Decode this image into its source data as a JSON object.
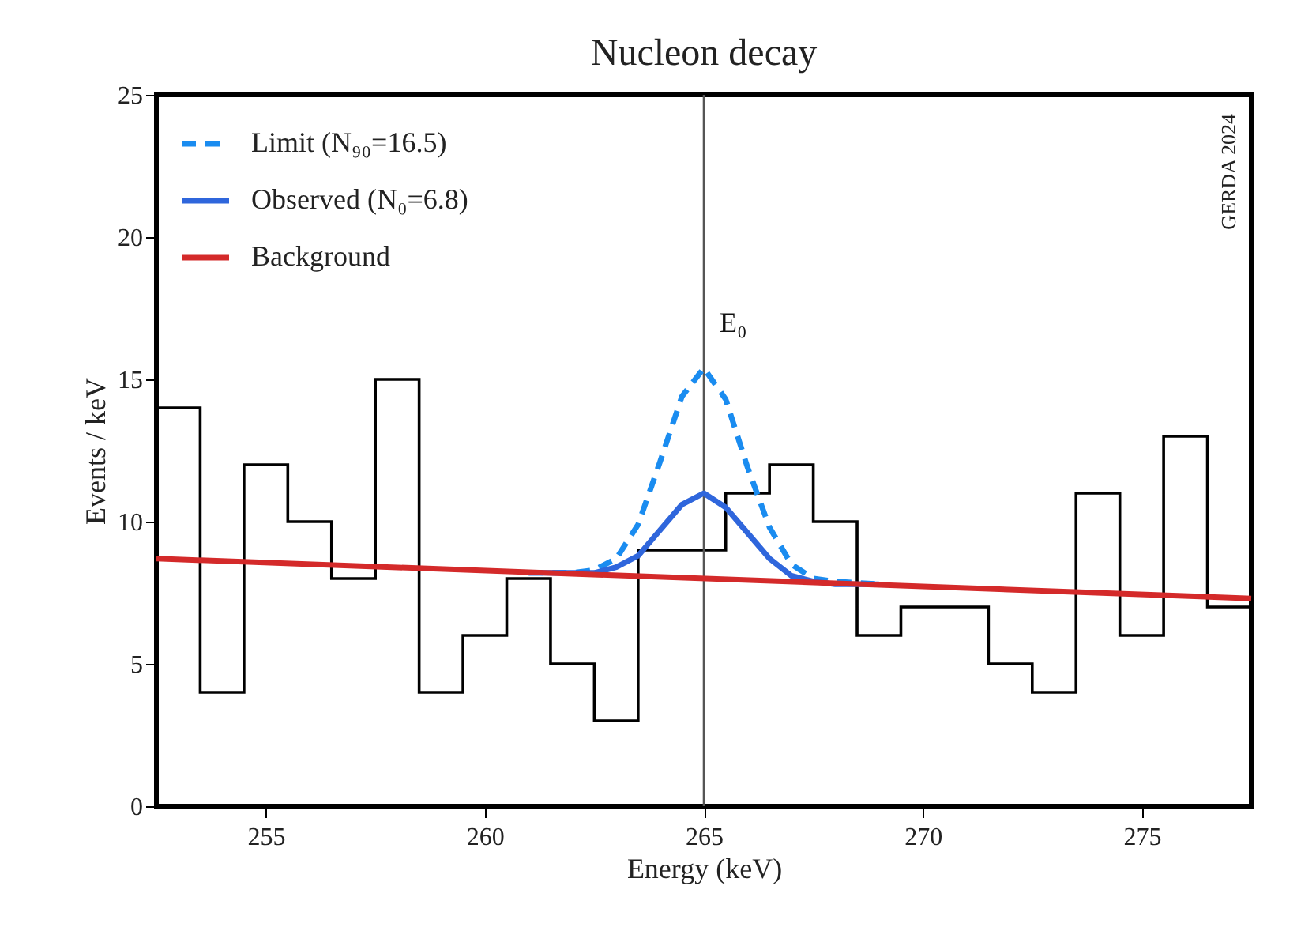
{
  "chart_data": {
    "type": "histogram",
    "title": "Nucleon decay",
    "xlabel": "Energy (keV)",
    "ylabel": "Events / keV",
    "bins": [
      252.5,
      253.5,
      254.5,
      255.5,
      256.5,
      257.5,
      258.5,
      259.5,
      260.5,
      261.5,
      262.5,
      263.5,
      264.5,
      265.5,
      266.5,
      267.5,
      268.5,
      269.5,
      270.5,
      271.5,
      272.5,
      273.5,
      274.5,
      275.5,
      276.5,
      277.5
    ],
    "values": [
      14,
      4,
      12,
      10,
      8,
      15,
      4,
      6,
      8,
      5,
      3,
      9,
      9,
      11,
      12,
      10,
      6,
      7,
      7,
      5,
      4,
      11,
      6,
      13,
      7
    ],
    "color": "#000000",
    "series": [
      {
        "name": "Limit (N₉₀=16.5)",
        "type": "line",
        "line_style": "dashed",
        "color": "#1a8cf0",
        "x": [
          261,
          262,
          262.5,
          263,
          263.5,
          264,
          264.5,
          265,
          265.5,
          266,
          266.5,
          267,
          267.5,
          268,
          269
        ],
        "values": [
          8.2,
          8.2,
          8.3,
          8.7,
          9.9,
          12.1,
          14.4,
          15.4,
          14.3,
          11.9,
          9.8,
          8.5,
          8.0,
          7.9,
          7.8
        ]
      },
      {
        "name": "Observed (N₀=6.8)",
        "type": "line",
        "line_style": "solid",
        "color": "#2f66dc",
        "x": [
          261,
          262,
          262.5,
          263,
          263.5,
          264,
          264.5,
          265,
          265.5,
          266,
          266.5,
          267,
          267.5,
          268,
          269
        ],
        "values": [
          8.2,
          8.2,
          8.2,
          8.4,
          8.8,
          9.7,
          10.6,
          11.0,
          10.5,
          9.6,
          8.7,
          8.1,
          7.9,
          7.8,
          7.8
        ]
      },
      {
        "name": "Background",
        "type": "line",
        "line_style": "solid",
        "color": "#d42a2a",
        "x": [
          252.5,
          277.5
        ],
        "values": [
          8.7,
          7.3
        ]
      }
    ],
    "ref_lines": [
      {
        "axis": "x",
        "value": 265,
        "label": "E₀",
        "color": "#555555"
      }
    ],
    "annotations": [
      "GERDA 2024"
    ],
    "xlim": [
      252.5,
      277.5
    ],
    "xticks": [
      255,
      260,
      265,
      270,
      275
    ],
    "ylim": [
      0,
      25
    ],
    "yticks": [
      0,
      5,
      10,
      15,
      20,
      25
    ],
    "grid": false,
    "legend": "top left"
  }
}
